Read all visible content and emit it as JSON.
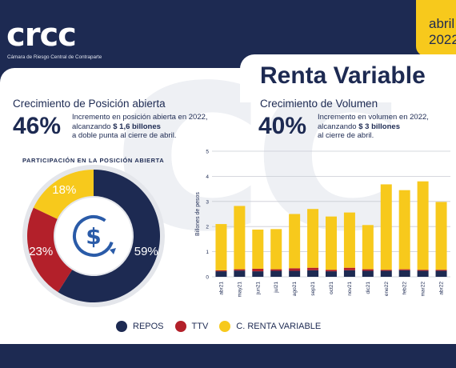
{
  "header": {
    "logo_text": "crcc",
    "logo_subtitle": "Cámara de Riesgo Central de Contraparte",
    "date_month": "abril",
    "date_year": "2022"
  },
  "main_title": "Renta Variable",
  "left_section": {
    "title": "Crecimiento de Posición abierta",
    "big_number": "46%",
    "desc_line1": "Incremento en posición abierta en 2022,",
    "desc_line2_prefix": "alcanzando ",
    "desc_line2_bold": "$ 1,6 billones",
    "desc_line3": "a doble punta al cierre de abril."
  },
  "right_section": {
    "title": "Crecimiento de Volumen",
    "big_number": "40%",
    "desc_line1": "Incremento en volumen en 2022,",
    "desc_line2_prefix": "alcanzando ",
    "desc_line2_bold": "$ 3 billones",
    "desc_line3": "al cierre de abril."
  },
  "donut": {
    "title": "PARTICIPACIÓN EN LA POSICIÓN ABIERTA",
    "center_icon": "dollar-cycle-icon"
  },
  "legend": [
    {
      "label": "REPOS",
      "color": "#1d2a52"
    },
    {
      "label": "TTV",
      "color": "#b3202a"
    },
    {
      "label": "C. RENTA VARIABLE",
      "color": "#f7c91c"
    }
  ],
  "chart_data": [
    {
      "type": "pie",
      "title": "PARTICIPACIÓN EN LA POSICIÓN ABIERTA",
      "categories": [
        "REPOS",
        "TTV",
        "C. RENTA VARIABLE"
      ],
      "values": [
        59,
        23,
        18
      ],
      "labels": [
        "59%",
        "23%",
        "18%"
      ],
      "colors": [
        "#1d2a52",
        "#b3202a",
        "#f7c91c"
      ]
    },
    {
      "type": "bar",
      "stacked": true,
      "ylabel": "Billones de pesos",
      "ylim": [
        0,
        5
      ],
      "yticks": [
        0,
        1,
        2,
        3,
        4,
        5
      ],
      "grid": true,
      "categories": [
        "abr21",
        "may21",
        "jun21",
        "jul21",
        "ago21",
        "sep21",
        "oct21",
        "nov21",
        "dic21",
        "ene22",
        "feb22",
        "mar22",
        "abr22"
      ],
      "series": [
        {
          "name": "REPOS",
          "color": "#1d2a52",
          "values": [
            0.22,
            0.25,
            0.22,
            0.24,
            0.24,
            0.26,
            0.22,
            0.26,
            0.24,
            0.24,
            0.26,
            0.24,
            0.24
          ]
        },
        {
          "name": "TTV",
          "color": "#b3202a",
          "values": [
            0.04,
            0.05,
            0.1,
            0.06,
            0.1,
            0.1,
            0.06,
            0.1,
            0.06,
            0.04,
            0.04,
            0.04,
            0.04
          ]
        },
        {
          "name": "C. RENTA VARIABLE",
          "color": "#f7c91c",
          "values": [
            1.84,
            2.52,
            1.56,
            1.6,
            2.16,
            2.34,
            2.12,
            2.2,
            1.76,
            3.4,
            3.15,
            3.52,
            2.7
          ]
        }
      ]
    }
  ]
}
